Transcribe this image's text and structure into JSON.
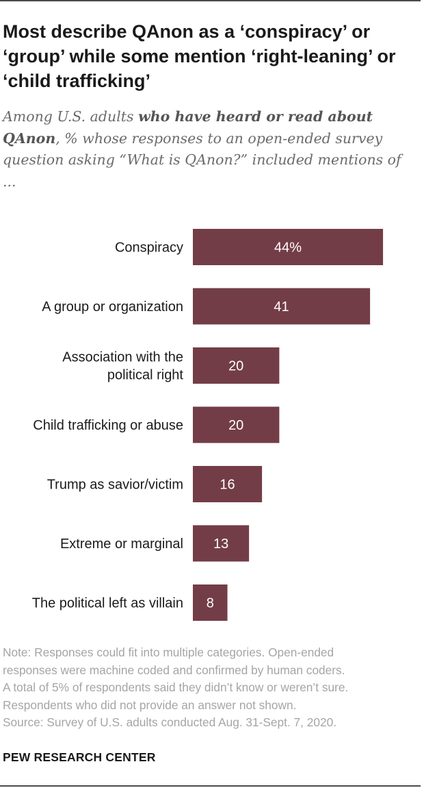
{
  "header": {
    "title": "Most describe QAnon as a ‘conspiracy’ or ‘group’ while some mention ‘right-leaning’ or ‘child trafficking’",
    "subtitle_part1": "Among U.S. adults ",
    "subtitle_bold": "who have heard or read about QAnon",
    "subtitle_part2": ", % whose responses to an open-ended survey question asking “What is QAnon?” included mentions of ..."
  },
  "chart_data": {
    "type": "bar",
    "orientation": "horizontal",
    "categories": [
      [
        "Conspiracy"
      ],
      [
        "A group or organization"
      ],
      [
        "Association with the",
        "political right"
      ],
      [
        "Child trafficking or abuse"
      ],
      [
        "Trump as savior/victim"
      ],
      [
        "Extreme or marginal"
      ],
      [
        "The political left as villain"
      ]
    ],
    "values": [
      44,
      41,
      20,
      20,
      16,
      13,
      8
    ],
    "value_labels": [
      "44%",
      "41",
      "20",
      "20",
      "16",
      "13",
      "8"
    ],
    "bar_color": "#733d47",
    "label_color": "#ffffff"
  },
  "footer": {
    "notes": [
      "Note: Responses could fit into multiple categories. Open-ended",
      "responses were machine coded and confirmed by human coders.",
      "A total of 5% of respondents said they didn’t know or weren’t sure.",
      "Respondents who did not provide an answer not shown.",
      "Source: Survey of U.S. adults conducted Aug. 31-Sept. 7, 2020."
    ],
    "brand": "PEW RESEARCH CENTER"
  }
}
